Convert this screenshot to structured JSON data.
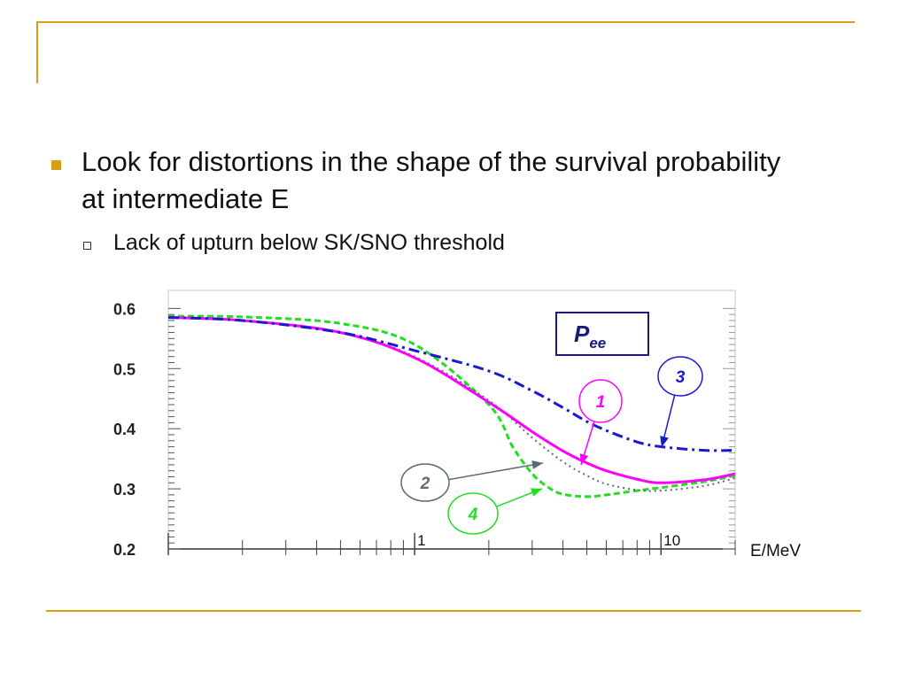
{
  "slide": {
    "bullet": "Look for distortions in the shape of the survival probability at intermediate E",
    "sub_bullet": "Lack of upturn below SK/SNO threshold"
  },
  "chart_data": {
    "type": "line",
    "title": "Pee",
    "title_base": "P",
    "title_sub": "ee",
    "xlabel": "E/MeV",
    "x_scale": "log",
    "xlim": [
      0.1,
      20
    ],
    "ylim": [
      0.2,
      0.63
    ],
    "yticks": [
      "0.6",
      "0.5",
      "0.4",
      "0.3",
      "0.2"
    ],
    "xtick_labels": [
      "1",
      "10"
    ],
    "series": [
      {
        "name": "1",
        "color": "#ff00ff",
        "style": "solid",
        "x": [
          0.1,
          0.2,
          0.5,
          1.0,
          2.0,
          3.0,
          4.0,
          5.0,
          6.0,
          8.0,
          10.0,
          15.0,
          20.0
        ],
        "y": [
          0.585,
          0.58,
          0.56,
          0.518,
          0.444,
          0.395,
          0.363,
          0.343,
          0.33,
          0.316,
          0.31,
          0.315,
          0.325
        ]
      },
      {
        "name": "2",
        "color": "#5a6a7a",
        "style": "dotted",
        "x": [
          0.1,
          0.2,
          0.5,
          1.0,
          2.0,
          3.0,
          4.0,
          5.0,
          6.0,
          8.0,
          10.0,
          15.0,
          20.0
        ],
        "y": [
          0.585,
          0.58,
          0.56,
          0.52,
          0.447,
          0.385,
          0.345,
          0.322,
          0.308,
          0.298,
          0.297,
          0.305,
          0.318
        ]
      },
      {
        "name": "3",
        "color": "#1a1acc",
        "style": "dashdot",
        "x": [
          0.1,
          0.2,
          0.5,
          1.0,
          2.0,
          3.0,
          4.0,
          5.0,
          6.0,
          8.0,
          10.0,
          15.0,
          20.0
        ],
        "y": [
          0.585,
          0.58,
          0.56,
          0.53,
          0.496,
          0.463,
          0.435,
          0.412,
          0.397,
          0.378,
          0.37,
          0.364,
          0.364
        ]
      },
      {
        "name": "4",
        "color": "#22dd22",
        "style": "dashed",
        "x": [
          0.1,
          0.2,
          0.5,
          1.0,
          2.0,
          2.5,
          3.0,
          3.5,
          4.0,
          5.0,
          6.0,
          8.0,
          10.0,
          15.0,
          20.0
        ],
        "y": [
          0.587,
          0.586,
          0.575,
          0.54,
          0.44,
          0.37,
          0.325,
          0.302,
          0.291,
          0.287,
          0.29,
          0.297,
          0.302,
          0.312,
          0.322
        ]
      }
    ]
  }
}
